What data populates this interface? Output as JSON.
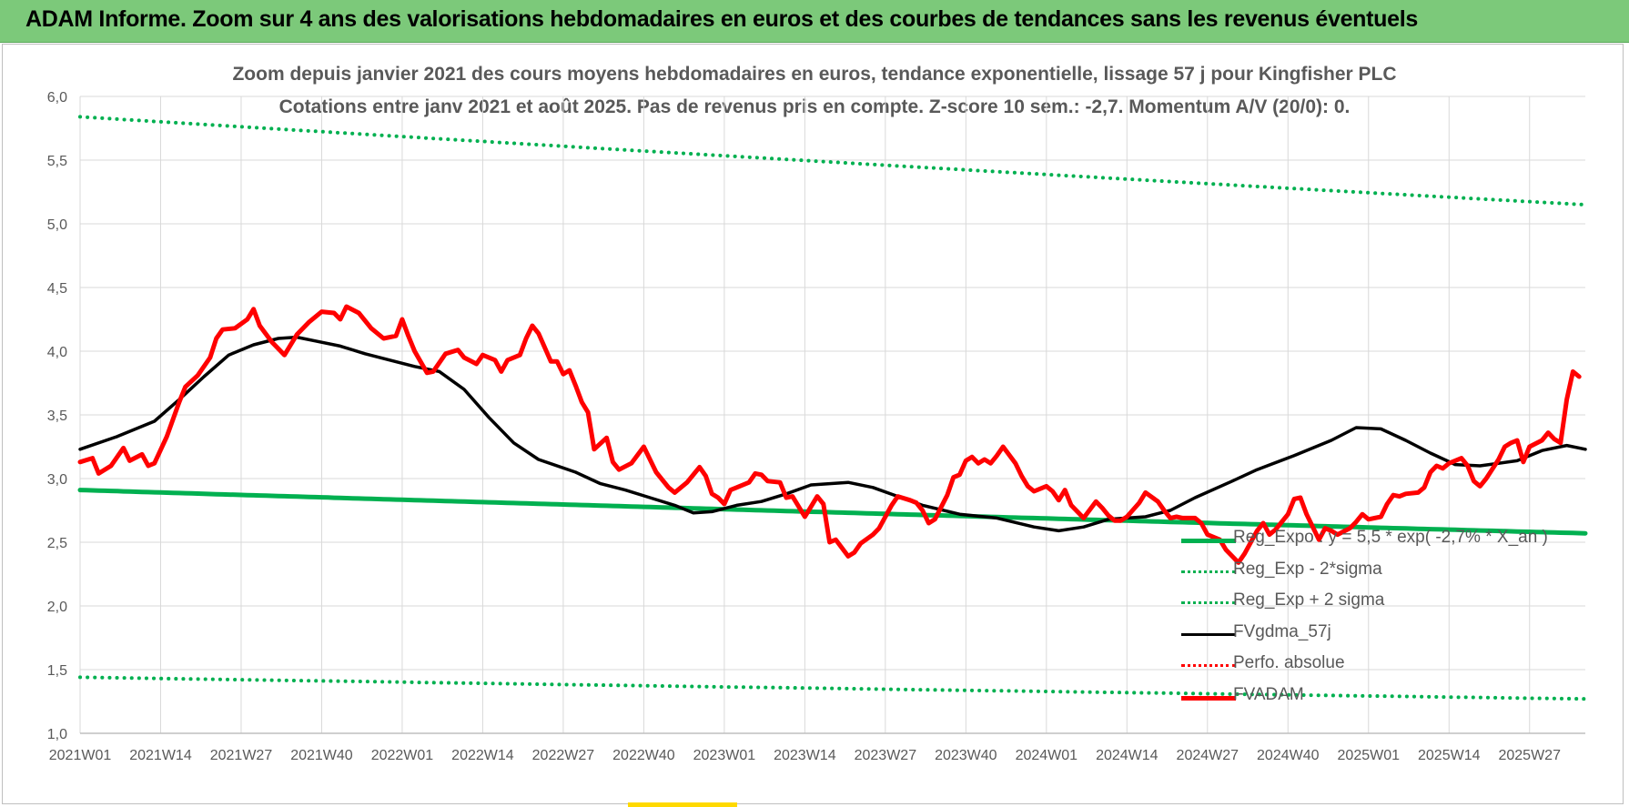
{
  "header": {
    "title": "ADAM Informe. Zoom sur 4 ans des valorisations hebdomadaires en euros et des courbes de tendances sans les revenus éventuels"
  },
  "chart_data": {
    "type": "line",
    "title": "Zoom depuis janvier 2021 des cours moyens hebdomadaires en euros, tendance exponentielle, lissage 57 j pour Kingfisher PLC",
    "subtitle": "Cotations entre janv 2021 et août 2025.  Pas de revenus pris en compte. Z-score 10 sem.: -2,7. Momentum A/V (20/0): 0.",
    "xlabel": "",
    "ylabel": "",
    "ylim": [
      1.0,
      6.0
    ],
    "yticks": [
      "1,0",
      "1,5",
      "2,0",
      "2,5",
      "3,0",
      "3,5",
      "4,0",
      "4,5",
      "5,0",
      "5,5",
      "6,0"
    ],
    "ytick_values": [
      1.0,
      1.5,
      2.0,
      2.5,
      3.0,
      3.5,
      4.0,
      4.5,
      5.0,
      5.5,
      6.0
    ],
    "x_categories": [
      "2021W01",
      "2021W14",
      "2021W27",
      "2021W40",
      "2022W01",
      "2022W14",
      "2022W27",
      "2022W40",
      "2023W01",
      "2023W14",
      "2023W27",
      "2023W40",
      "2024W01",
      "2024W14",
      "2024W27",
      "2024W40",
      "2025W01",
      "2025W14",
      "2025W27"
    ],
    "x_tick_index": [
      0,
      13,
      26,
      39,
      52,
      65,
      78,
      91,
      104,
      117,
      130,
      143,
      156,
      169,
      182,
      195,
      208,
      221,
      234
    ],
    "n_weeks": 243,
    "grid": true,
    "legend_position": "bottom-right",
    "series": [
      {
        "name": "Reg_Expo : y = 5,5 * exp( -2,7% * X_an )",
        "style": "solid",
        "color": "#00b050",
        "width": 5,
        "start": 2.91,
        "end": 2.57
      },
      {
        "name": "Reg_Exp - 2*sigma",
        "style": "dotted",
        "color": "#00b050",
        "width": 4,
        "start": 1.44,
        "end": 1.27
      },
      {
        "name": "Reg_Exp + 2 sigma",
        "style": "dotted",
        "color": "#00b050",
        "width": 4,
        "start": 5.84,
        "end": 5.15
      },
      {
        "name": "FVgdma_57j",
        "style": "solid",
        "color": "#000000",
        "width": 3.5,
        "keypoints": [
          [
            0,
            3.23
          ],
          [
            6,
            3.33
          ],
          [
            12,
            3.45
          ],
          [
            16,
            3.62
          ],
          [
            20,
            3.8
          ],
          [
            24,
            3.97
          ],
          [
            28,
            4.05
          ],
          [
            32,
            4.1
          ],
          [
            35,
            4.11
          ],
          [
            38,
            4.08
          ],
          [
            42,
            4.04
          ],
          [
            46,
            3.98
          ],
          [
            50,
            3.93
          ],
          [
            54,
            3.88
          ],
          [
            58,
            3.84
          ],
          [
            62,
            3.7
          ],
          [
            66,
            3.48
          ],
          [
            70,
            3.28
          ],
          [
            74,
            3.15
          ],
          [
            80,
            3.05
          ],
          [
            84,
            2.96
          ],
          [
            88,
            2.91
          ],
          [
            92,
            2.85
          ],
          [
            96,
            2.79
          ],
          [
            99,
            2.73
          ],
          [
            102,
            2.74
          ],
          [
            106,
            2.79
          ],
          [
            110,
            2.82
          ],
          [
            114,
            2.88
          ],
          [
            118,
            2.95
          ],
          [
            124,
            2.97
          ],
          [
            128,
            2.93
          ],
          [
            132,
            2.86
          ],
          [
            136,
            2.79
          ],
          [
            142,
            2.72
          ],
          [
            148,
            2.69
          ],
          [
            154,
            2.62
          ],
          [
            158,
            2.59
          ],
          [
            162,
            2.62
          ],
          [
            166,
            2.68
          ],
          [
            172,
            2.7
          ],
          [
            176,
            2.75
          ],
          [
            180,
            2.85
          ],
          [
            186,
            2.98
          ],
          [
            190,
            3.07
          ],
          [
            196,
            3.18
          ],
          [
            202,
            3.3
          ],
          [
            206,
            3.4
          ],
          [
            210,
            3.39
          ],
          [
            214,
            3.3
          ],
          [
            218,
            3.2
          ],
          [
            222,
            3.11
          ],
          [
            226,
            3.1
          ],
          [
            232,
            3.14
          ],
          [
            236,
            3.22
          ],
          [
            240,
            3.26
          ],
          [
            243,
            3.23
          ]
        ]
      },
      {
        "name": "Perfo. absolue",
        "style": "dotted",
        "color": "#ff0000",
        "width": 3,
        "keypoints": []
      },
      {
        "name": "FVADAM",
        "style": "solid",
        "color": "#ff0000",
        "width": 5,
        "keypoints": [
          [
            0,
            3.13
          ],
          [
            2,
            3.16
          ],
          [
            3,
            3.04
          ],
          [
            5,
            3.1
          ],
          [
            7,
            3.24
          ],
          [
            8,
            3.14
          ],
          [
            10,
            3.19
          ],
          [
            11,
            3.1
          ],
          [
            12,
            3.12
          ],
          [
            14,
            3.33
          ],
          [
            16,
            3.6
          ],
          [
            17,
            3.72
          ],
          [
            19,
            3.81
          ],
          [
            21,
            3.95
          ],
          [
            22,
            4.1
          ],
          [
            23,
            4.17
          ],
          [
            25,
            4.18
          ],
          [
            27,
            4.25
          ],
          [
            28,
            4.33
          ],
          [
            29,
            4.2
          ],
          [
            31,
            4.07
          ],
          [
            33,
            3.97
          ],
          [
            35,
            4.13
          ],
          [
            37,
            4.23
          ],
          [
            39,
            4.31
          ],
          [
            41,
            4.3
          ],
          [
            42,
            4.25
          ],
          [
            43,
            4.35
          ],
          [
            45,
            4.3
          ],
          [
            47,
            4.18
          ],
          [
            49,
            4.1
          ],
          [
            51,
            4.12
          ],
          [
            52,
            4.25
          ],
          [
            53,
            4.12
          ],
          [
            54,
            4.0
          ],
          [
            56,
            3.83
          ],
          [
            57,
            3.84
          ],
          [
            59,
            3.98
          ],
          [
            61,
            4.01
          ],
          [
            62,
            3.95
          ],
          [
            64,
            3.9
          ],
          [
            65,
            3.97
          ],
          [
            67,
            3.93
          ],
          [
            68,
            3.84
          ],
          [
            69,
            3.93
          ],
          [
            71,
            3.97
          ],
          [
            72,
            4.1
          ],
          [
            73,
            4.2
          ],
          [
            74,
            4.14
          ],
          [
            75,
            4.03
          ],
          [
            76,
            3.92
          ],
          [
            77,
            3.92
          ],
          [
            78,
            3.82
          ],
          [
            79,
            3.85
          ],
          [
            80,
            3.73
          ],
          [
            81,
            3.6
          ],
          [
            82,
            3.52
          ],
          [
            83,
            3.23
          ],
          [
            85,
            3.32
          ],
          [
            86,
            3.13
          ],
          [
            87,
            3.07
          ],
          [
            89,
            3.12
          ],
          [
            91,
            3.25
          ],
          [
            93,
            3.05
          ],
          [
            95,
            2.93
          ],
          [
            96,
            2.89
          ],
          [
            98,
            2.97
          ],
          [
            100,
            3.09
          ],
          [
            101,
            3.02
          ],
          [
            102,
            2.88
          ],
          [
            103,
            2.85
          ],
          [
            104,
            2.8
          ],
          [
            105,
            2.91
          ],
          [
            106,
            2.93
          ],
          [
            108,
            2.97
          ],
          [
            109,
            3.04
          ],
          [
            110,
            3.03
          ],
          [
            111,
            2.98
          ],
          [
            113,
            2.97
          ],
          [
            114,
            2.85
          ],
          [
            115,
            2.86
          ],
          [
            117,
            2.7
          ],
          [
            118,
            2.78
          ],
          [
            119,
            2.86
          ],
          [
            120,
            2.8
          ],
          [
            121,
            2.5
          ],
          [
            122,
            2.52
          ],
          [
            124,
            2.39
          ],
          [
            125,
            2.42
          ],
          [
            126,
            2.49
          ],
          [
            128,
            2.56
          ],
          [
            129,
            2.61
          ],
          [
            131,
            2.79
          ],
          [
            132,
            2.86
          ],
          [
            134,
            2.83
          ],
          [
            135,
            2.81
          ],
          [
            136,
            2.75
          ],
          [
            137,
            2.65
          ],
          [
            138,
            2.68
          ],
          [
            140,
            2.87
          ],
          [
            141,
            3.01
          ],
          [
            142,
            3.03
          ],
          [
            143,
            3.14
          ],
          [
            144,
            3.17
          ],
          [
            145,
            3.12
          ],
          [
            146,
            3.15
          ],
          [
            147,
            3.12
          ],
          [
            148,
            3.18
          ],
          [
            149,
            3.25
          ],
          [
            151,
            3.12
          ],
          [
            152,
            3.02
          ],
          [
            153,
            2.94
          ],
          [
            154,
            2.9
          ],
          [
            156,
            2.94
          ],
          [
            157,
            2.9
          ],
          [
            158,
            2.83
          ],
          [
            159,
            2.91
          ],
          [
            160,
            2.79
          ],
          [
            161,
            2.74
          ],
          [
            162,
            2.69
          ],
          [
            164,
            2.82
          ],
          [
            165,
            2.77
          ],
          [
            166,
            2.71
          ],
          [
            167,
            2.67
          ],
          [
            168,
            2.67
          ],
          [
            169,
            2.7
          ],
          [
            171,
            2.81
          ],
          [
            172,
            2.89
          ],
          [
            174,
            2.82
          ],
          [
            175,
            2.75
          ],
          [
            176,
            2.69
          ],
          [
            177,
            2.7
          ],
          [
            178,
            2.69
          ],
          [
            180,
            2.69
          ],
          [
            181,
            2.65
          ],
          [
            182,
            2.56
          ],
          [
            184,
            2.52
          ],
          [
            185,
            2.44
          ],
          [
            187,
            2.34
          ],
          [
            188,
            2.41
          ],
          [
            190,
            2.59
          ],
          [
            191,
            2.65
          ],
          [
            192,
            2.56
          ],
          [
            193,
            2.6
          ],
          [
            195,
            2.72
          ],
          [
            196,
            2.84
          ],
          [
            197,
            2.85
          ],
          [
            198,
            2.72
          ],
          [
            200,
            2.52
          ],
          [
            201,
            2.61
          ],
          [
            202,
            2.59
          ],
          [
            203,
            2.56
          ],
          [
            205,
            2.61
          ],
          [
            206,
            2.66
          ],
          [
            207,
            2.72
          ],
          [
            208,
            2.68
          ],
          [
            210,
            2.7
          ],
          [
            211,
            2.8
          ],
          [
            212,
            2.87
          ],
          [
            213,
            2.86
          ],
          [
            214,
            2.88
          ],
          [
            216,
            2.89
          ],
          [
            217,
            2.93
          ],
          [
            218,
            3.05
          ],
          [
            219,
            3.1
          ],
          [
            220,
            3.08
          ],
          [
            221,
            3.12
          ],
          [
            223,
            3.16
          ],
          [
            224,
            3.1
          ],
          [
            225,
            2.98
          ],
          [
            226,
            2.94
          ],
          [
            227,
            3.0
          ],
          [
            229,
            3.15
          ],
          [
            230,
            3.25
          ],
          [
            231,
            3.28
          ],
          [
            232,
            3.3
          ],
          [
            233,
            3.13
          ],
          [
            234,
            3.25
          ],
          [
            236,
            3.3
          ],
          [
            237,
            3.36
          ],
          [
            238,
            3.31
          ],
          [
            239,
            3.28
          ],
          [
            240,
            3.62
          ],
          [
            241,
            3.84
          ],
          [
            242,
            3.8
          ]
        ]
      }
    ]
  }
}
